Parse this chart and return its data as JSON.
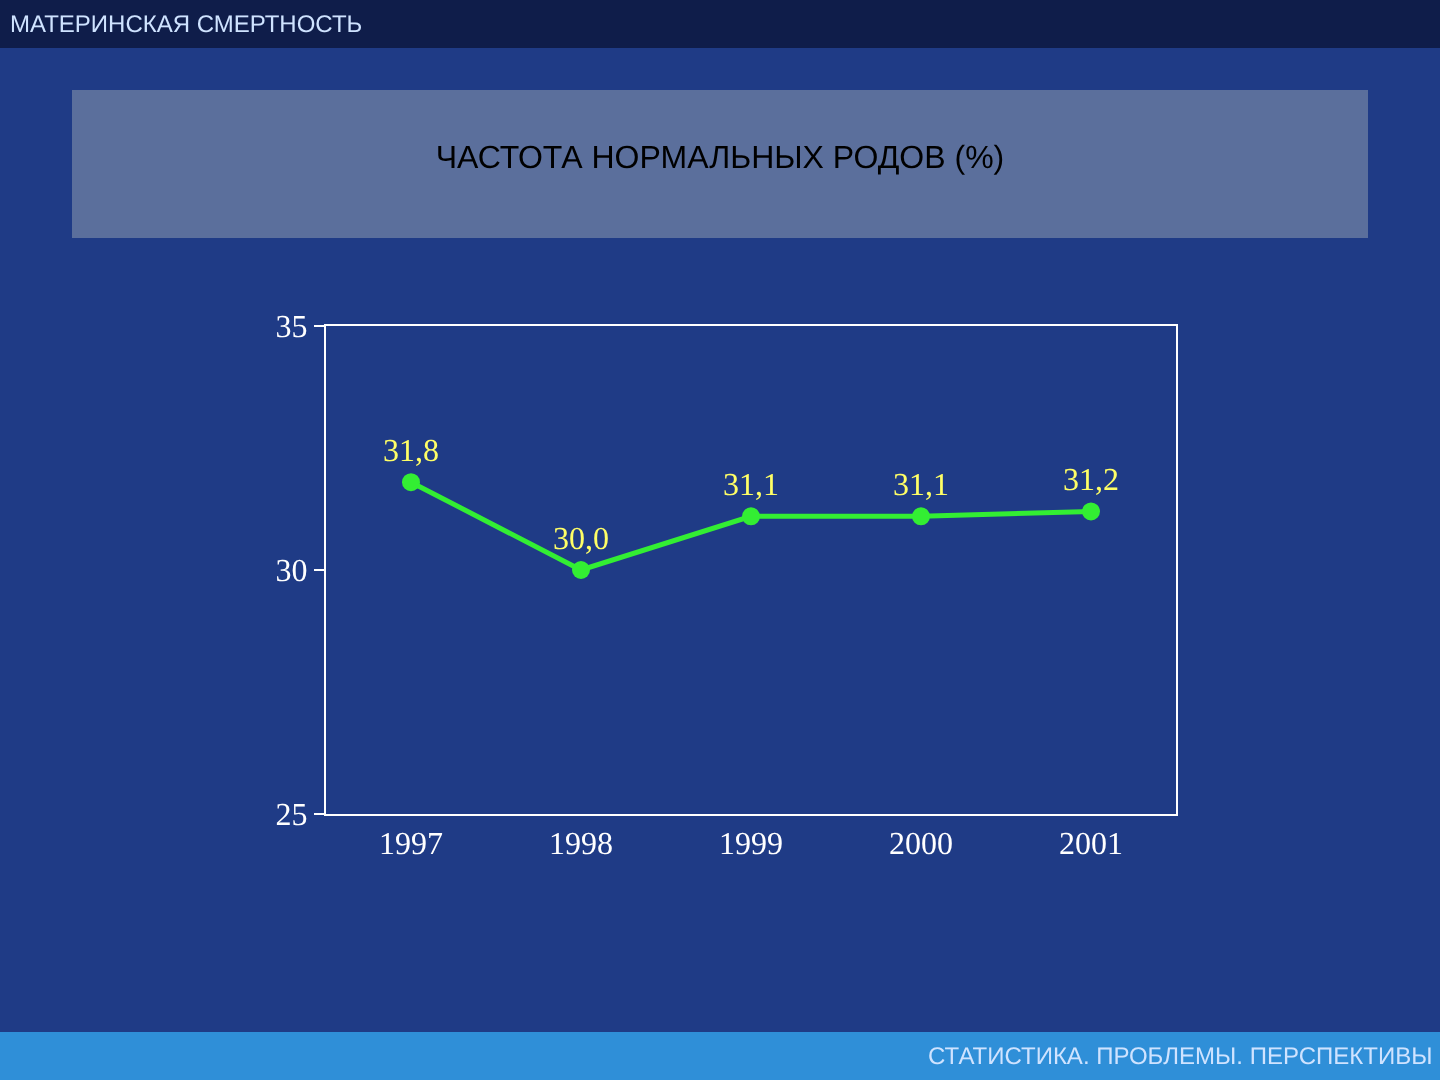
{
  "chart_data": {
    "type": "line",
    "title": "ЧАСТОТА НОРМАЛЬНЫХ РОДОВ (%)",
    "categories": [
      "1997",
      "1998",
      "1999",
      "2000",
      "2001"
    ],
    "series": [
      {
        "color": "#33ee33",
        "values": [
          31.8,
          30.0,
          31.1,
          31.1,
          31.2
        ],
        "value_labels": [
          "31,8",
          "30,0",
          "31,1",
          "31,1",
          "31,2"
        ]
      }
    ],
    "ylim": [
      25,
      35
    ],
    "yticks": [
      25,
      30,
      35
    ],
    "marker": "circle",
    "line_style": "solid",
    "annotations": [
      "МАТЕРИНСКАЯ СМЕРТНОСТЬ",
      "СТАТИСТИКА. ПРОБЛЕМЫ. ПЕРСПЕКТИВЫ"
    ]
  }
}
